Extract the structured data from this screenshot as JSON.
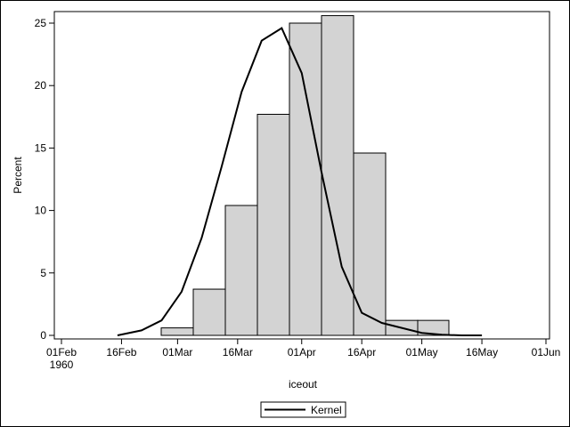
{
  "chart_data": {
    "type": "bar",
    "title": "",
    "xlabel": "iceout",
    "ylabel": "Percent",
    "ylim": [
      0,
      26
    ],
    "y_ticks": [
      0,
      5,
      10,
      15,
      20,
      25
    ],
    "x_ticks": [
      "01Feb\n1960",
      "16Feb",
      "01Mar",
      "16Mar",
      "01Apr",
      "16Apr",
      "01May",
      "16May",
      "01Jun"
    ],
    "bins": [
      {
        "start": "24Feb1960",
        "end": "03Mar1960",
        "percent": 0.6
      },
      {
        "start": "03Mar1960",
        "end": "11Mar1960",
        "percent": 3.7
      },
      {
        "start": "11Mar1960",
        "end": "19Mar1960",
        "percent": 10.4
      },
      {
        "start": "19Mar1960",
        "end": "27Mar1960",
        "percent": 17.7
      },
      {
        "start": "27Mar1960",
        "end": "04Apr1960",
        "percent": 25.0
      },
      {
        "start": "04Apr1960",
        "end": "12Apr1960",
        "percent": 25.6
      },
      {
        "start": "12Apr1960",
        "end": "20Apr1960",
        "percent": 14.6
      },
      {
        "start": "20Apr1960",
        "end": "28Apr1960",
        "percent": 1.2
      },
      {
        "start": "28Apr1960",
        "end": "06May1960",
        "percent": 1.2
      }
    ],
    "series": [
      {
        "name": "Kernel",
        "type": "line",
        "x_days_from_01Feb": [
          14,
          20,
          25,
          30,
          35,
          40,
          45,
          50,
          55,
          60,
          65,
          70,
          75,
          80,
          85,
          90,
          95,
          100,
          105
        ],
        "values": [
          0.0,
          0.4,
          1.2,
          3.5,
          7.8,
          13.5,
          19.5,
          23.6,
          24.6,
          21.0,
          13.0,
          5.5,
          1.8,
          1.0,
          0.6,
          0.2,
          0.05,
          0.0,
          0.0
        ]
      }
    ],
    "legend": {
      "position": "bottom",
      "entries": [
        "Kernel"
      ]
    },
    "grid": false
  },
  "axes": {
    "y_label": "Percent",
    "x_label": "iceout",
    "y_tick_labels": [
      "0",
      "5",
      "10",
      "15",
      "20",
      "25"
    ],
    "x_tick_labels": [
      "01Feb",
      "16Feb",
      "01Mar",
      "16Mar",
      "01Apr",
      "16Apr",
      "01May",
      "16May",
      "01Jun"
    ],
    "x_year_label": "1960"
  },
  "legend": {
    "kernel_label": "Kernel"
  }
}
